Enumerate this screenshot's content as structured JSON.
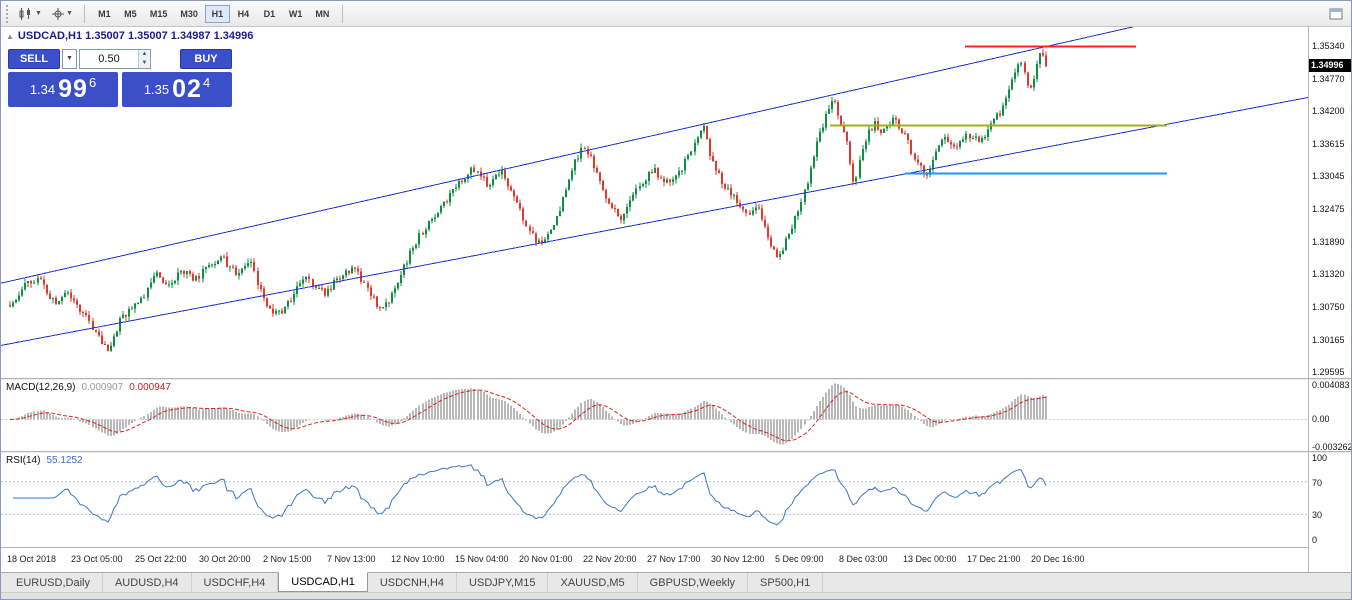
{
  "toolbar": {
    "timeframes": [
      "M1",
      "M5",
      "M15",
      "M30",
      "H1",
      "H4",
      "D1",
      "W1",
      "MN"
    ],
    "active_timeframe": "H1"
  },
  "chart_header": {
    "symbol_ohlc": "USDCAD,H1  1.35007 1.35007 1.34987 1.34996"
  },
  "trade_panel": {
    "sell_label": "SELL",
    "buy_label": "BUY",
    "volume": "0.50",
    "sell_price": {
      "big": "1.34",
      "mid": "99",
      "sup": "6"
    },
    "buy_price": {
      "big": "1.35",
      "mid": "02",
      "sup": "4"
    },
    "accent_color": "#3b4fc8"
  },
  "indicators": {
    "macd": {
      "name": "MACD(12,26,9)",
      "value_main": "0.000907",
      "value_signal": "0.000947"
    },
    "rsi": {
      "name": "RSI(14)",
      "value": "55.1252"
    }
  },
  "tabs": [
    {
      "label": "EURUSD,Daily",
      "active": false
    },
    {
      "label": "AUDUSD,H4",
      "active": false
    },
    {
      "label": "USDCHF,H4",
      "active": false
    },
    {
      "label": "USDCAD,H1",
      "active": true
    },
    {
      "label": "USDCNH,H4",
      "active": false
    },
    {
      "label": "USDJPY,M15",
      "active": false
    },
    {
      "label": "XAUUSD,M5",
      "active": false
    },
    {
      "label": "GBPUSD,Weekly",
      "active": false
    },
    {
      "label": "SP500,H1",
      "active": false
    }
  ],
  "chart_data": [
    {
      "type": "candlestick",
      "symbol": "USDCAD",
      "timeframe": "H1",
      "current": {
        "open": 1.35007,
        "high": 1.35007,
        "low": 1.34987,
        "close": 1.34996
      },
      "bid": "1.34996",
      "y_ticks": [
        "1.35340",
        "1.34770",
        "1.34200",
        "1.33615",
        "1.33045",
        "1.32475",
        "1.31890",
        "1.31320",
        "1.30750",
        "1.30165",
        "1.29595"
      ],
      "y_range": [
        1.2949,
        1.3568
      ],
      "x_ticks": [
        "18 Oct 2018",
        "23 Oct 05:00",
        "25 Oct 22:00",
        "30 Oct 20:00",
        "2 Nov 15:00",
        "7 Nov 13:00",
        "12 Nov 10:00",
        "15 Nov 04:00",
        "20 Nov 01:00",
        "22 Nov 20:00",
        "27 Nov 17:00",
        "30 Nov 12:00",
        "5 Dec 09:00",
        "8 Dec 03:00",
        "13 Dec 00:00",
        "17 Dec 21:00",
        "20 Dec 16:00"
      ],
      "candles": 340,
      "shift_fraction": 0.795,
      "up_color": "#0e8f43",
      "down_color": "#dd3b2f",
      "price_anchors": [
        [
          0.0,
          1.3078
        ],
        [
          0.012,
          1.3108
        ],
        [
          0.027,
          1.3128
        ],
        [
          0.042,
          1.3082
        ],
        [
          0.056,
          1.3102
        ],
        [
          0.07,
          1.3064
        ],
        [
          0.082,
          1.303
        ],
        [
          0.094,
          1.2996
        ],
        [
          0.106,
          1.3048
        ],
        [
          0.12,
          1.3072
        ],
        [
          0.133,
          1.3105
        ],
        [
          0.142,
          1.3138
        ],
        [
          0.153,
          1.311
        ],
        [
          0.167,
          1.314
        ],
        [
          0.178,
          1.3118
        ],
        [
          0.192,
          1.3148
        ],
        [
          0.205,
          1.316
        ],
        [
          0.218,
          1.3136
        ],
        [
          0.232,
          1.3155
        ],
        [
          0.247,
          1.3075
        ],
        [
          0.258,
          1.3058
        ],
        [
          0.272,
          1.3092
        ],
        [
          0.287,
          1.3128
        ],
        [
          0.302,
          1.3098
        ],
        [
          0.318,
          1.3125
        ],
        [
          0.332,
          1.3142
        ],
        [
          0.346,
          1.3108
        ],
        [
          0.357,
          1.3066
        ],
        [
          0.372,
          1.3105
        ],
        [
          0.388,
          1.3178
        ],
        [
          0.403,
          1.3222
        ],
        [
          0.418,
          1.3252
        ],
        [
          0.432,
          1.3288
        ],
        [
          0.447,
          1.332
        ],
        [
          0.462,
          1.329
        ],
        [
          0.476,
          1.3312
        ],
        [
          0.491,
          1.3248
        ],
        [
          0.505,
          1.3198
        ],
        [
          0.513,
          1.3185
        ],
        [
          0.527,
          1.3222
        ],
        [
          0.541,
          1.3305
        ],
        [
          0.552,
          1.3358
        ],
        [
          0.566,
          1.3318
        ],
        [
          0.578,
          1.3252
        ],
        [
          0.591,
          1.3232
        ],
        [
          0.606,
          1.3282
        ],
        [
          0.62,
          1.3318
        ],
        [
          0.632,
          1.329
        ],
        [
          0.646,
          1.3312
        ],
        [
          0.658,
          1.3345
        ],
        [
          0.668,
          1.3398
        ],
        [
          0.678,
          1.333
        ],
        [
          0.688,
          1.3292
        ],
        [
          0.702,
          1.3262
        ],
        [
          0.712,
          1.3232
        ],
        [
          0.722,
          1.3252
        ],
        [
          0.732,
          1.3192
        ],
        [
          0.742,
          1.3164
        ],
        [
          0.752,
          1.3202
        ],
        [
          0.763,
          1.3252
        ],
        [
          0.772,
          1.3312
        ],
        [
          0.782,
          1.3382
        ],
        [
          0.79,
          1.342
        ],
        [
          0.796,
          1.3445
        ],
        [
          0.802,
          1.3398
        ],
        [
          0.809,
          1.336
        ],
        [
          0.815,
          1.3282
        ],
        [
          0.824,
          1.3362
        ],
        [
          0.834,
          1.34
        ],
        [
          0.844,
          1.3382
        ],
        [
          0.854,
          1.3408
        ],
        [
          0.864,
          1.338
        ],
        [
          0.874,
          1.3332
        ],
        [
          0.884,
          1.3306
        ],
        [
          0.894,
          1.335
        ],
        [
          0.904,
          1.3372
        ],
        [
          0.914,
          1.3356
        ],
        [
          0.924,
          1.338
        ],
        [
          0.934,
          1.3366
        ],
        [
          0.944,
          1.3386
        ],
        [
          0.954,
          1.3412
        ],
        [
          0.964,
          1.3448
        ],
        [
          0.971,
          1.3492
        ],
        [
          0.977,
          1.3508
        ],
        [
          0.983,
          1.3458
        ],
        [
          0.989,
          1.3482
        ],
        [
          0.995,
          1.3528
        ],
        [
          1.0,
          1.34996
        ]
      ],
      "trend_lines": [
        {
          "name": "channel-upper",
          "color": "#2233cc",
          "width": 1,
          "points": [
            [
              -0.02,
              1.3111
            ],
            [
              1.26,
              1.3642
            ]
          ]
        },
        {
          "name": "channel-lower",
          "color": "#2233cc",
          "width": 1,
          "points": [
            [
              -0.02,
              1.3002
            ],
            [
              1.26,
              1.3447
            ]
          ]
        }
      ],
      "h_lines": [
        {
          "name": "resistance-red",
          "color": "#ff2222",
          "width": 2,
          "price": 1.3534,
          "t1": 0.92,
          "t2": 1.085
        },
        {
          "name": "level-olive",
          "color": "#a3ad1c",
          "width": 2,
          "price": 1.3394,
          "t1": 0.79,
          "t2": 1.115
        },
        {
          "name": "support-blue",
          "color": "#2196f3",
          "width": 2,
          "price": 1.331,
          "t1": 0.862,
          "t2": 1.115
        }
      ]
    },
    {
      "type": "macd-histogram",
      "label": "MACD(12,26,9)",
      "values": [
        "0.000907",
        "0.000947"
      ],
      "periods": [
        12,
        26,
        9
      ],
      "y_ticks": [
        "0.004083",
        "0.00",
        "-0.003262"
      ],
      "y_range": [
        -0.0036,
        0.0045
      ],
      "histogram_color": "#b8b8b8",
      "signal_color": "#dd2222",
      "derived_from": "main-closes"
    },
    {
      "type": "rsi-line",
      "label": "RSI(14)",
      "value": "55.1252",
      "period": 14,
      "y_ticks": [
        "100",
        "70",
        "30",
        "0"
      ],
      "levels": [
        70,
        30
      ],
      "line_color": "#3b78c8",
      "level_color": "#b9bfd0",
      "derived_from": "main-closes"
    }
  ]
}
